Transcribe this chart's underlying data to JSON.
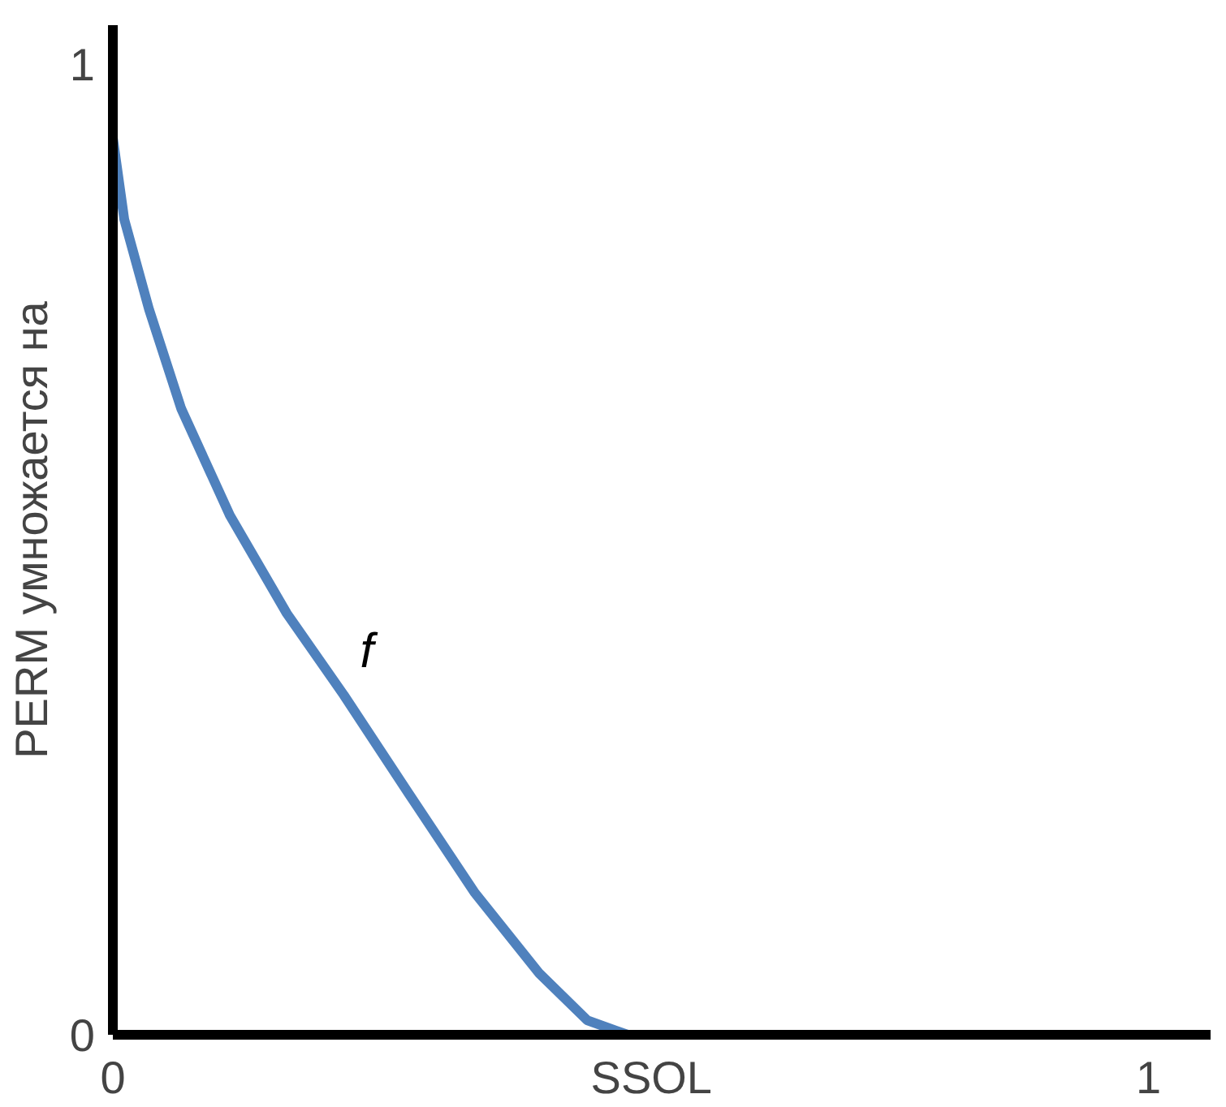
{
  "chart_data": {
    "type": "line",
    "xlabel": null,
    "ylabel": "PERM умножается на",
    "x": [
      0,
      0.011,
      0.035,
      0.066,
      0.113,
      0.168,
      0.223,
      0.286,
      0.349,
      0.412,
      0.458,
      0.497,
      0.529
    ],
    "series": [
      {
        "name": "f",
        "color": "#4f81bd",
        "values": [
          0.924,
          0.84,
          0.747,
          0.645,
          0.535,
          0.434,
          0.35,
          0.248,
          0.147,
          0.063,
          0.015,
          0,
          0
        ]
      }
    ],
    "xlim": [
      0,
      1.06
    ],
    "ylim": [
      0,
      1.04
    ],
    "xticks": [
      0,
      {
        "value": 0.52,
        "label": "SSOL"
      },
      1
    ],
    "yticks": [
      0,
      1
    ],
    "grid": false,
    "marker": "none",
    "line_style": "solid"
  }
}
